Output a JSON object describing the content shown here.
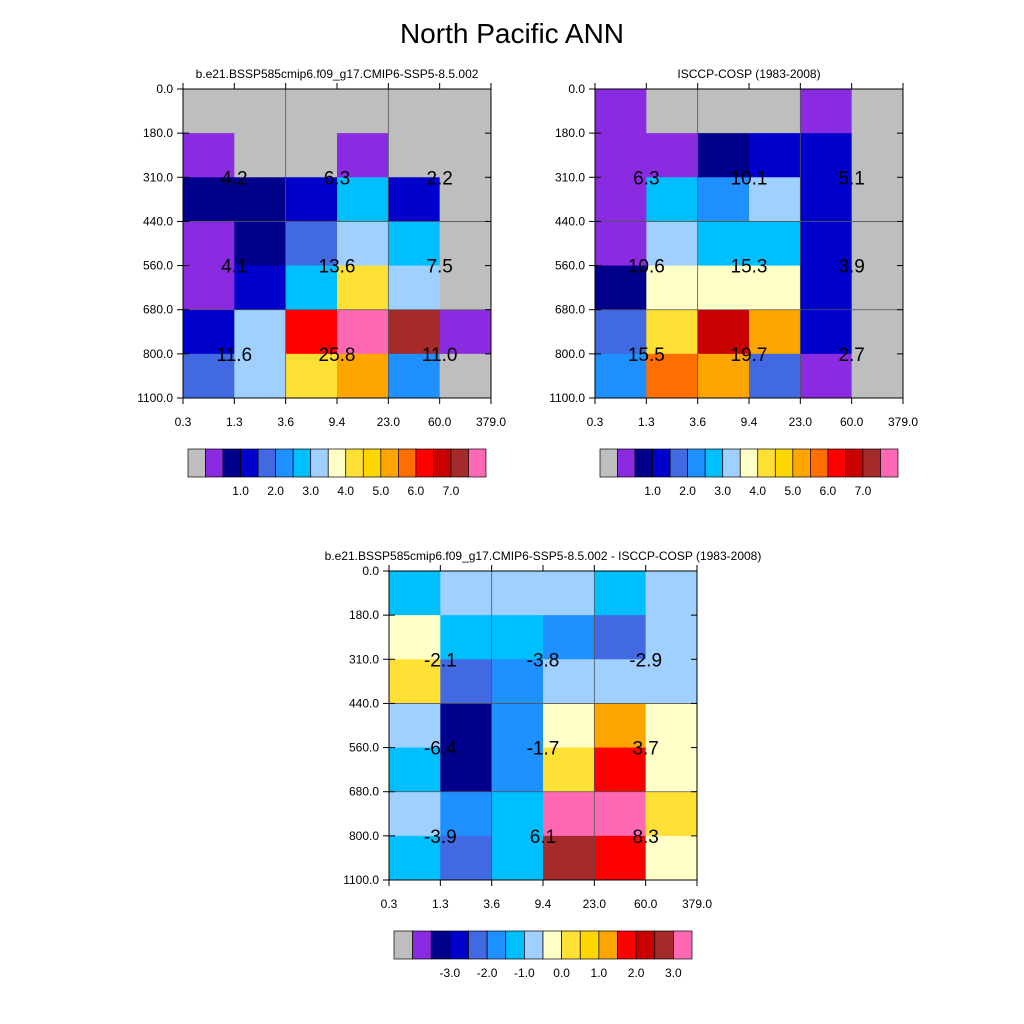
{
  "title": "North Pacific ANN",
  "chart_data": [
    {
      "type": "heatmap",
      "title": "b.e21.BSSP585cmip6.f09_g17.CMIP6-SSP5-8.5.002",
      "x_ticks": [
        "0.3",
        "1.3",
        "3.6",
        "9.4",
        "23.0",
        "60.0",
        "379.0"
      ],
      "y_ticks": [
        "0.0",
        "180.0",
        "310.0",
        "440.0",
        "560.0",
        "680.0",
        "800.0",
        "1100.0"
      ],
      "cells": [
        [
          "gray",
          "gray",
          "gray",
          "gray",
          "gray",
          "gray"
        ],
        [
          "purple",
          "gray",
          "gray",
          "purple",
          "gray",
          "gray"
        ],
        [
          "navy",
          "navy",
          "blue",
          "deepskyblue",
          "blue",
          "gray"
        ],
        [
          "purple",
          "navy",
          "royalblue",
          "lightblue",
          "deepskyblue",
          "gray"
        ],
        [
          "purple",
          "blue",
          "deepskyblue",
          "gold",
          "lightblue",
          "gray"
        ],
        [
          "blue",
          "lightblue",
          "red",
          "pink",
          "brown",
          "purple"
        ],
        [
          "royalblue",
          "lightblue",
          "gold",
          "orange",
          "dodgerblue",
          "gray"
        ]
      ],
      "labels": [
        {
          "col": 0,
          "row": 0,
          "text": "4.2"
        },
        {
          "col": 1,
          "row": 0,
          "text": "6.3"
        },
        {
          "col": 2,
          "row": 0,
          "text": "2.2"
        },
        {
          "col": 0,
          "row": 1,
          "text": "4.1"
        },
        {
          "col": 1,
          "row": 1,
          "text": "13.6"
        },
        {
          "col": 2,
          "row": 1,
          "text": "7.5"
        },
        {
          "col": 0,
          "row": 2,
          "text": "11.6"
        },
        {
          "col": 1,
          "row": 2,
          "text": "25.8"
        },
        {
          "col": 2,
          "row": 2,
          "text": "11.0"
        }
      ],
      "colorbar": {
        "colors": [
          "gray",
          "purple",
          "navy",
          "blue",
          "royalblue",
          "dodgerblue",
          "deepskyblue",
          "lightblue",
          "lightyellow",
          "gold",
          "yellow",
          "orange",
          "darkorange",
          "red",
          "darkred",
          "brown",
          "pink"
        ],
        "labels": [
          "1.0",
          "2.0",
          "3.0",
          "4.0",
          "5.0",
          "6.0",
          "7.0"
        ]
      }
    },
    {
      "type": "heatmap",
      "title": "ISCCP-COSP (1983-2008)",
      "x_ticks": [
        "0.3",
        "1.3",
        "3.6",
        "9.4",
        "23.0",
        "60.0",
        "379.0"
      ],
      "y_ticks": [
        "0.0",
        "180.0",
        "310.0",
        "440.0",
        "560.0",
        "680.0",
        "800.0",
        "1100.0"
      ],
      "cells": [
        [
          "purple",
          "gray",
          "gray",
          "gray",
          "purple",
          "gray"
        ],
        [
          "purple",
          "purple",
          "navy",
          "blue",
          "blue",
          "gray"
        ],
        [
          "purple",
          "deepskyblue",
          "dodgerblue",
          "lightblue",
          "blue",
          "gray"
        ],
        [
          "purple",
          "lightblue",
          "deepskyblue",
          "deepskyblue",
          "blue",
          "gray"
        ],
        [
          "navy",
          "lightyellow",
          "lightyellow",
          "lightyellow",
          "blue",
          "gray"
        ],
        [
          "royalblue",
          "gold",
          "darkred",
          "orange",
          "blue",
          "gray"
        ],
        [
          "dodgerblue",
          "darkorange",
          "orange",
          "royalblue",
          "purple",
          "gray"
        ]
      ],
      "labels": [
        {
          "col": 0,
          "row": 0,
          "text": "6.3"
        },
        {
          "col": 1,
          "row": 0,
          "text": "10.1"
        },
        {
          "col": 2,
          "row": 0,
          "text": "5.1"
        },
        {
          "col": 0,
          "row": 1,
          "text": "10.6"
        },
        {
          "col": 1,
          "row": 1,
          "text": "15.3"
        },
        {
          "col": 2,
          "row": 1,
          "text": "3.9"
        },
        {
          "col": 0,
          "row": 2,
          "text": "15.5"
        },
        {
          "col": 1,
          "row": 2,
          "text": "19.7"
        },
        {
          "col": 2,
          "row": 2,
          "text": "2.7"
        }
      ],
      "colorbar": {
        "colors": [
          "gray",
          "purple",
          "navy",
          "blue",
          "royalblue",
          "dodgerblue",
          "deepskyblue",
          "lightblue",
          "lightyellow",
          "gold",
          "yellow",
          "orange",
          "darkorange",
          "red",
          "darkred",
          "brown",
          "pink"
        ],
        "labels": [
          "1.0",
          "2.0",
          "3.0",
          "4.0",
          "5.0",
          "6.0",
          "7.0"
        ]
      }
    },
    {
      "type": "heatmap",
      "title": "b.e21.BSSP585cmip6.f09_g17.CMIP6-SSP5-8.5.002 - ISCCP-COSP (1983-2008)",
      "x_ticks": [
        "0.3",
        "1.3",
        "3.6",
        "9.4",
        "23.0",
        "60.0",
        "379.0"
      ],
      "y_ticks": [
        "0.0",
        "180.0",
        "310.0",
        "440.0",
        "560.0",
        "680.0",
        "800.0",
        "1100.0"
      ],
      "cells": [
        [
          "deepskyblue",
          "lightblue",
          "lightblue",
          "lightblue",
          "deepskyblue",
          "lightblue"
        ],
        [
          "lightyellow",
          "deepskyblue",
          "deepskyblue",
          "dodgerblue",
          "royalblue",
          "lightblue"
        ],
        [
          "gold",
          "royalblue",
          "dodgerblue",
          "lightblue",
          "lightblue",
          "lightblue"
        ],
        [
          "lightblue",
          "navy",
          "dodgerblue",
          "lightyellow",
          "orange",
          "lightyellow"
        ],
        [
          "deepskyblue",
          "navy",
          "dodgerblue",
          "gold",
          "red",
          "lightyellow"
        ],
        [
          "lightblue",
          "dodgerblue",
          "deepskyblue",
          "pink",
          "pink",
          "gold"
        ],
        [
          "deepskyblue",
          "royalblue",
          "deepskyblue",
          "brown",
          "red",
          "lightyellow"
        ]
      ],
      "labels": [
        {
          "col": 0,
          "row": 0,
          "text": "-2.1"
        },
        {
          "col": 1,
          "row": 0,
          "text": "-3.8"
        },
        {
          "col": 2,
          "row": 0,
          "text": "-2.9"
        },
        {
          "col": 0,
          "row": 1,
          "text": "-6.4"
        },
        {
          "col": 1,
          "row": 1,
          "text": "-1.7"
        },
        {
          "col": 2,
          "row": 1,
          "text": "3.7"
        },
        {
          "col": 0,
          "row": 2,
          "text": "-3.9"
        },
        {
          "col": 1,
          "row": 2,
          "text": "6.1"
        },
        {
          "col": 2,
          "row": 2,
          "text": "8.3"
        }
      ],
      "colorbar": {
        "colors": [
          "gray",
          "purple",
          "navy",
          "blue",
          "royalblue",
          "dodgerblue",
          "deepskyblue",
          "lightblue",
          "lightyellow",
          "gold",
          "yellow",
          "orange",
          "red",
          "darkred",
          "brown",
          "pink"
        ],
        "labels": [
          "-3.0",
          "-2.0",
          "-1.0",
          "0.0",
          "1.0",
          "2.0",
          "3.0"
        ]
      }
    }
  ],
  "palette": {
    "gray": "#BEBEBE",
    "purple": "#8A2BE2",
    "navy": "#00008B",
    "blue": "#0000CD",
    "royalblue": "#4169E1",
    "dodgerblue": "#1E90FF",
    "deepskyblue": "#00BFFF",
    "lightblue": "#A0D0FF",
    "lightyellow": "#FFFFC8",
    "gold": "#FFE135",
    "yellow": "#FFD700",
    "orange": "#FFA500",
    "darkorange": "#FF6E00",
    "red": "#FF0000",
    "darkred": "#C80000",
    "brown": "#A52A2A",
    "pink": "#FF69B4"
  }
}
